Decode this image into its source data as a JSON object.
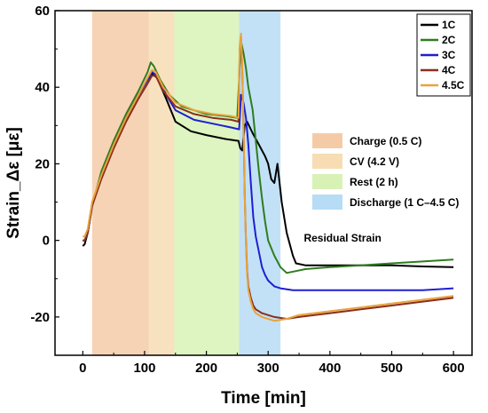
{
  "chart_data": {
    "type": "line",
    "xlabel": "Time [min]",
    "ylabel": "Strain_Δε [με]",
    "xlim": [
      -45,
      630
    ],
    "ylim": [
      -30,
      60
    ],
    "xticks": [
      0,
      100,
      200,
      300,
      400,
      500,
      600
    ],
    "yticks": [
      -20,
      0,
      20,
      40,
      60
    ],
    "grid": false,
    "legend_position": "top-right",
    "phases": [
      {
        "label": "Charge (0.5 C)",
        "start": 15,
        "end": 107,
        "color": "#f5cba7"
      },
      {
        "label": "CV (4.2 V)",
        "start": 107,
        "end": 148,
        "color": "#f7dcb4"
      },
      {
        "label": "Rest (2 h)",
        "start": 148,
        "end": 253,
        "color": "#d8f2b6"
      },
      {
        "label": "Discharge (1 C–4.5 C)",
        "start": 253,
        "end": 320,
        "color": "#b7dcf5"
      }
    ],
    "annotation": {
      "text": "Residual Strain",
      "x": 398,
      "y": -0.3
    },
    "series": [
      {
        "name": "1C",
        "color": "#000000",
        "x": [
          0,
          3,
          8,
          15,
          30,
          50,
          70,
          90,
          105,
          112,
          120,
          135,
          150,
          175,
          200,
          230,
          252,
          255,
          258,
          262,
          266,
          275,
          285,
          295,
          300,
          305,
          310,
          315,
          322,
          330,
          340,
          345,
          360,
          400,
          450,
          500,
          550,
          600
        ],
        "y": [
          -1.5,
          -1,
          2,
          9,
          17,
          25,
          32,
          38,
          42,
          43.5,
          42.5,
          37,
          31,
          28.5,
          27.5,
          26.5,
          26,
          24,
          23.5,
          30,
          31,
          28,
          25,
          22,
          20,
          16,
          15,
          20,
          10,
          2,
          -4,
          -6,
          -6.5,
          -6.5,
          -6.5,
          -6.5,
          -6.8,
          -7
        ]
      },
      {
        "name": "2C",
        "color": "#2e7d1e",
        "x": [
          0,
          3,
          8,
          15,
          30,
          50,
          70,
          90,
          105,
          110,
          115,
          125,
          140,
          160,
          200,
          230,
          250,
          256,
          260,
          264,
          268,
          275,
          280,
          285,
          290,
          295,
          300,
          310,
          320,
          330,
          345,
          360,
          400,
          450,
          500,
          550,
          600
        ],
        "y": [
          0,
          0,
          2,
          9,
          18,
          26,
          33,
          39,
          44,
          46.5,
          45.5,
          42,
          38,
          35,
          33,
          32.5,
          32,
          52,
          49,
          45,
          40,
          34,
          26,
          18,
          11,
          5,
          0,
          -4,
          -7,
          -8.5,
          -8,
          -7.5,
          -7,
          -6.5,
          -6,
          -5.5,
          -5
        ]
      },
      {
        "name": "3C",
        "color": "#1f1fd1",
        "x": [
          0,
          3,
          8,
          15,
          30,
          50,
          70,
          90,
          105,
          112,
          120,
          135,
          150,
          180,
          210,
          240,
          253,
          256,
          260,
          264,
          268,
          272,
          276,
          280,
          285,
          290,
          295,
          300,
          310,
          320,
          340,
          370,
          400,
          450,
          500,
          550,
          600
        ],
        "y": [
          0,
          0,
          2,
          9,
          17,
          25,
          32,
          38,
          42,
          44,
          43,
          38,
          34,
          31.5,
          30.5,
          29.5,
          29,
          38,
          36,
          32,
          25,
          15,
          6,
          1,
          -3,
          -7,
          -9,
          -10.5,
          -12,
          -12.5,
          -13,
          -13,
          -13,
          -13,
          -13,
          -13,
          -12.5
        ]
      },
      {
        "name": "4C",
        "color": "#8b2e1e",
        "x": [
          0,
          3,
          8,
          15,
          30,
          50,
          70,
          90,
          105,
          112,
          118,
          130,
          150,
          180,
          210,
          240,
          252,
          254,
          256,
          258,
          260,
          262,
          264,
          266,
          268,
          272,
          276,
          280,
          290,
          310,
          330,
          350,
          400,
          450,
          500,
          550,
          600
        ],
        "y": [
          0,
          0,
          2,
          9,
          16,
          24,
          31,
          37,
          41,
          43,
          43,
          39,
          35,
          33,
          32,
          31.5,
          31,
          50,
          53,
          45,
          30,
          12,
          0,
          -8,
          -12,
          -15,
          -17,
          -18,
          -19,
          -20,
          -20.5,
          -20,
          -19,
          -18,
          -17,
          -16,
          -15
        ]
      },
      {
        "name": "4.5C",
        "color": "#e8a33d",
        "x": [
          0,
          3,
          8,
          15,
          30,
          50,
          70,
          90,
          105,
          112,
          118,
          130,
          150,
          180,
          210,
          240,
          252,
          254,
          256,
          258,
          260,
          262,
          264,
          266,
          268,
          272,
          276,
          280,
          290,
          310,
          330,
          350,
          400,
          450,
          500,
          550,
          600
        ],
        "y": [
          1,
          1,
          3,
          10,
          17,
          25,
          32,
          38,
          42.5,
          44.5,
          44,
          40,
          36,
          34,
          33,
          32.5,
          32,
          51,
          54,
          46,
          30,
          12,
          -1,
          -9,
          -13,
          -16,
          -18,
          -19,
          -20,
          -21,
          -20.5,
          -19.5,
          -18.5,
          -17.5,
          -16.5,
          -15.5,
          -14.5
        ]
      }
    ]
  }
}
